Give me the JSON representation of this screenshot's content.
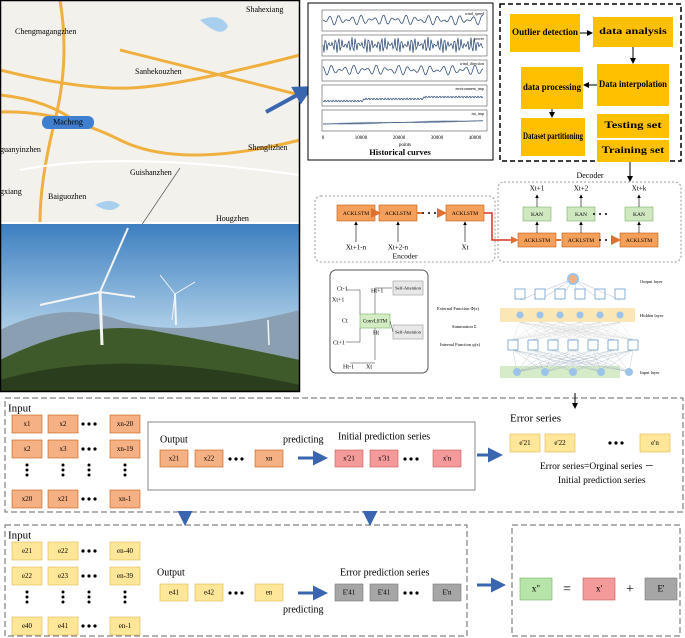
{
  "map": {
    "labels": [
      "Shahexiang",
      "Chengmagangzhen",
      "Sanhekouzhen",
      "Macheng",
      "guanyinzhen",
      "Shenglizhen",
      "Guishanzhen",
      "Baiguozhen",
      "gxiang",
      "Hougzhen"
    ]
  },
  "curves": {
    "title": "Historical curves",
    "x_label": "points",
    "x_ticks": [
      "0",
      "10000",
      "20000",
      "30000",
      "40000"
    ],
    "legend": [
      "wind_speed",
      "power",
      "wind_direction",
      "environment_tmp",
      "int_tmp"
    ]
  },
  "flow": {
    "nodes": [
      "Outlier detection",
      "data analysis",
      "data processing",
      "Data interpolation",
      "Dataset partitioning",
      "Testing set",
      "Training set"
    ]
  },
  "encoder": {
    "label": "Encoder",
    "cells": [
      "ACKLSTM",
      "ACKLSTM",
      "ACKLSTM"
    ],
    "inputs": [
      "Xt+1-n",
      "Xt+2-n",
      "Xt"
    ]
  },
  "decoder": {
    "label": "Decoder",
    "outputs": [
      "Xt+1",
      "Xt+2",
      "Xt+k"
    ],
    "kan": [
      "KAN",
      "KAN",
      "KAN"
    ],
    "cells": [
      "ACKLSTM",
      "ACKLSTM",
      "ACKLSTM"
    ]
  },
  "cell": {
    "core": "ConvLSTM",
    "attention": [
      "Self-Attention",
      "Self-Attention"
    ],
    "labels": [
      "Ct-1",
      "Ht+1",
      "Xt+1",
      "Ct",
      "Ht",
      "Ct+1",
      "Ht-1",
      "Xt"
    ]
  },
  "kan_net": {
    "layers": [
      "Output layer",
      "Hidden layer",
      "Input layer"
    ],
    "functions": [
      "External Function Φ(x)",
      "Summation Σ",
      "Internal Function φ(x)"
    ]
  },
  "stage1": {
    "input_label": "Input",
    "input_rows": [
      [
        "x1",
        "x2",
        "xn-20"
      ],
      [
        "x2",
        "x3",
        "xn-19"
      ],
      [
        "x20",
        "x21",
        "xn-1"
      ]
    ],
    "output_label": "Output",
    "outputs": [
      "x21",
      "x22",
      "xn"
    ],
    "predicting": "predicting",
    "prediction_label": "Initial prediction series",
    "predictions": [
      "x'21",
      "x'31",
      "x'n"
    ],
    "error_label": "Error series",
    "errors": [
      "e'21",
      "e'22",
      "e'n"
    ],
    "formula": [
      "Error series=Orginal series －",
      "Initial prediction series"
    ]
  },
  "stage2": {
    "input_label": "Input",
    "input_rows": [
      [
        "e21",
        "e22",
        "en-40"
      ],
      [
        "e22",
        "e23",
        "en-39"
      ],
      [
        "e40",
        "e41",
        "en-1"
      ]
    ],
    "output_label": "Output",
    "outputs": [
      "e41",
      "e42",
      "en"
    ],
    "predicting": "predicting",
    "prediction_label": "Error prediction series",
    "predictions": [
      "E'41",
      "E'41",
      "E'n"
    ],
    "equation": [
      "x\"",
      "=",
      "x'",
      "+",
      "E'"
    ]
  }
}
